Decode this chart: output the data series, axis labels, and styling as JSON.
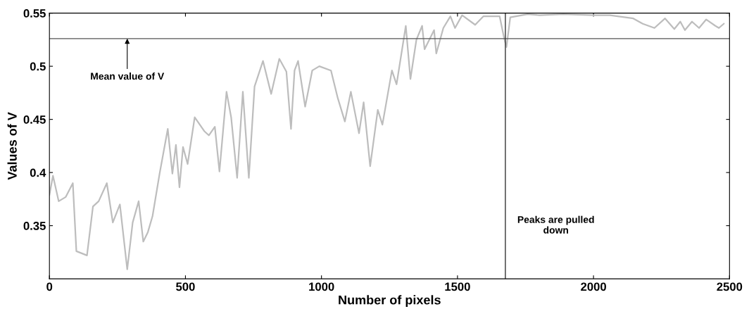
{
  "chart_data": {
    "type": "line",
    "xlabel": "Number of pixels",
    "ylabel": "Values of V",
    "xlim": [
      0,
      2500
    ],
    "xticks": [
      0,
      500,
      1000,
      1500,
      2000,
      2500
    ],
    "ylim": [
      0.3,
      0.55
    ],
    "yticks": [
      0.35,
      0.4,
      0.45,
      0.5,
      0.55
    ],
    "grid": false,
    "series": [
      {
        "color": "#bdbdbd",
        "x": [
          0,
          13,
          34,
          60,
          86,
          99,
          138,
          160,
          181,
          211,
          233,
          259,
          286,
          306,
          328,
          345,
          362,
          379,
          405,
          435,
          452,
          465,
          478,
          491,
          508,
          534,
          569,
          586,
          608,
          625,
          651,
          668,
          690,
          711,
          733,
          754,
          785,
          815,
          845,
          871,
          888,
          901,
          914,
          940,
          966,
          992,
          1035,
          1060,
          1086,
          1108,
          1138,
          1155,
          1179,
          1207,
          1224,
          1259,
          1276,
          1310,
          1327,
          1349,
          1370,
          1379,
          1414,
          1422,
          1448,
          1474,
          1491,
          1517,
          1565,
          1595,
          1655,
          1671,
          1680,
          1694,
          1758,
          1802,
          1888,
          1999,
          2060,
          2146,
          2181,
          2224,
          2263,
          2297,
          2319,
          2336,
          2362,
          2388,
          2414,
          2448,
          2461,
          2479
        ],
        "values": [
          0.379,
          0.397,
          0.373,
          0.377,
          0.39,
          0.326,
          0.322,
          0.368,
          0.373,
          0.39,
          0.353,
          0.37,
          0.309,
          0.353,
          0.373,
          0.335,
          0.344,
          0.359,
          0.399,
          0.441,
          0.399,
          0.426,
          0.386,
          0.424,
          0.408,
          0.452,
          0.439,
          0.435,
          0.443,
          0.401,
          0.476,
          0.452,
          0.395,
          0.476,
          0.395,
          0.481,
          0.505,
          0.474,
          0.507,
          0.495,
          0.441,
          0.496,
          0.505,
          0.462,
          0.496,
          0.5,
          0.496,
          0.47,
          0.448,
          0.476,
          0.437,
          0.466,
          0.406,
          0.459,
          0.445,
          0.496,
          0.483,
          0.538,
          0.488,
          0.525,
          0.538,
          0.516,
          0.534,
          0.512,
          0.536,
          0.547,
          0.536,
          0.548,
          0.539,
          0.547,
          0.547,
          0.527,
          0.518,
          0.546,
          0.549,
          0.548,
          0.549,
          0.548,
          0.548,
          0.545,
          0.54,
          0.536,
          0.545,
          0.535,
          0.542,
          0.534,
          0.542,
          0.536,
          0.544,
          0.538,
          0.536,
          0.54
        ]
      }
    ],
    "ref_lines": [
      {
        "axis": "y",
        "value": 0.526,
        "color": "#555555"
      },
      {
        "axis": "x",
        "value": 1676,
        "color": "#333333"
      }
    ],
    "annotations": [
      {
        "text": "Mean value of V",
        "x": 286,
        "y": 0.526
      },
      "Peaks are pulled\ndown"
    ]
  }
}
